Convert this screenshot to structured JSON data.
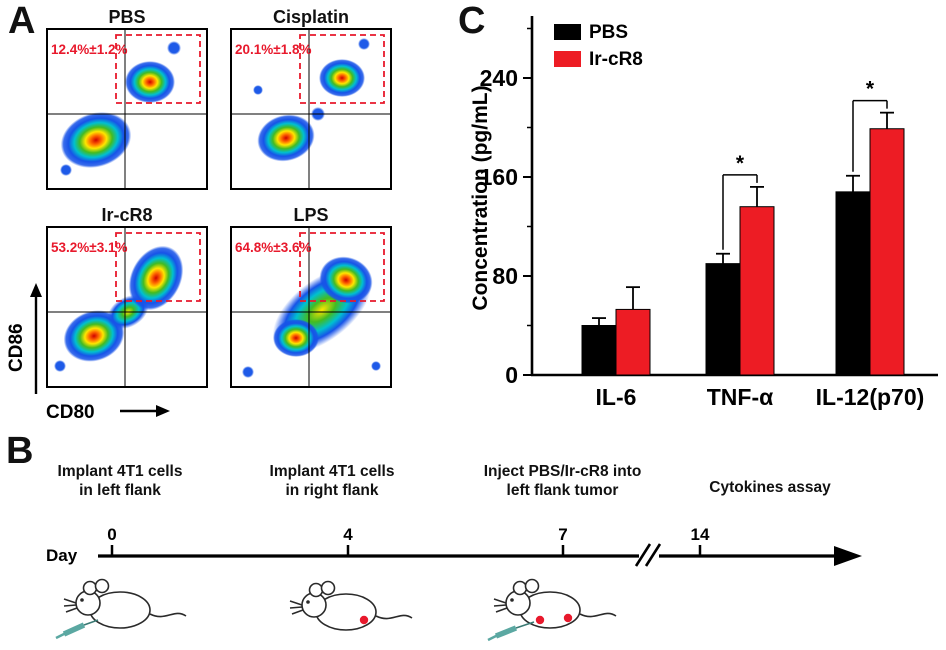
{
  "panelA": {
    "label": "A",
    "x_axis_label": "CD80",
    "y_axis_label": "CD86",
    "gate_color": "#e8192c",
    "plots": [
      {
        "title": "PBS",
        "value": "12.4%±1.2%"
      },
      {
        "title": "Cisplatin",
        "value": "20.1%±1.8%"
      },
      {
        "title": "Ir-cR8",
        "value": "53.2%±3.1%"
      },
      {
        "title": "LPS",
        "value": "64.8%±3.6%"
      }
    ]
  },
  "panelB": {
    "label": "B",
    "day_label": "Day",
    "events": [
      {
        "day": "0",
        "line1": "Implant 4T1 cells",
        "line2": "in left flank"
      },
      {
        "day": "4",
        "line1": "Implant 4T1 cells",
        "line2": "in right flank"
      },
      {
        "day": "7",
        "line1": "Inject PBS/Ir-cR8 into",
        "line2": "left flank tumor"
      },
      {
        "day": "14",
        "line1": "Cytokines assay",
        "line2": ""
      }
    ]
  },
  "panelC": {
    "label": "C"
  },
  "chart_data": {
    "type": "bar",
    "categories": [
      "IL-6",
      "TNF-α",
      "IL-12(p70)"
    ],
    "series": [
      {
        "name": "PBS",
        "color": "#000000",
        "values": [
          40,
          90,
          148
        ],
        "errors": [
          6,
          8,
          13
        ]
      },
      {
        "name": "Ir-cR8",
        "color": "#ed1c24",
        "values": [
          53,
          136,
          199
        ],
        "errors": [
          18,
          16,
          13
        ]
      }
    ],
    "title": "",
    "xlabel": "",
    "ylabel": "Concentration (pg/mL)",
    "ylim": [
      0,
      280
    ],
    "yticks": [
      0,
      80,
      160,
      240
    ],
    "grid": false,
    "legend_position": "top-left",
    "significance": [
      {
        "category": "TNF-α",
        "label": "*"
      },
      {
        "category": "IL-12(p70)",
        "label": "*"
      }
    ]
  }
}
